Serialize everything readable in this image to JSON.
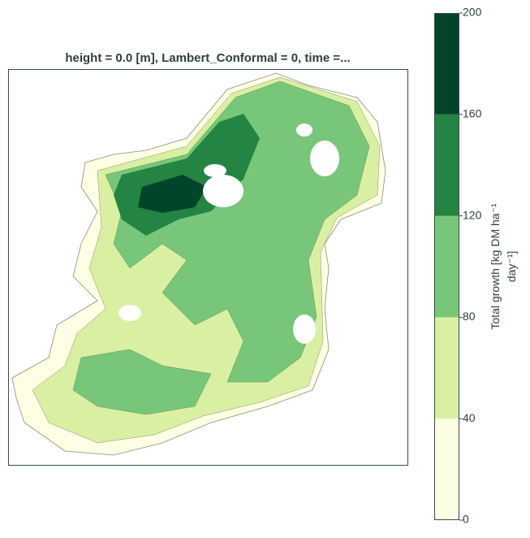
{
  "chart_data": {
    "type": "contourf",
    "title": "height = 0.0 [m], Lambert_Conformal = 0, time =...",
    "colorbar": {
      "levels": [
        0,
        40,
        80,
        120,
        160,
        200
      ],
      "colors": [
        "#ffffe5",
        "#d9f0a3",
        "#78c679",
        "#238443",
        "#004529"
      ],
      "label_lines": [
        "Total growth [kg DM ha⁻¹",
        "day⁻¹]"
      ]
    }
  }
}
